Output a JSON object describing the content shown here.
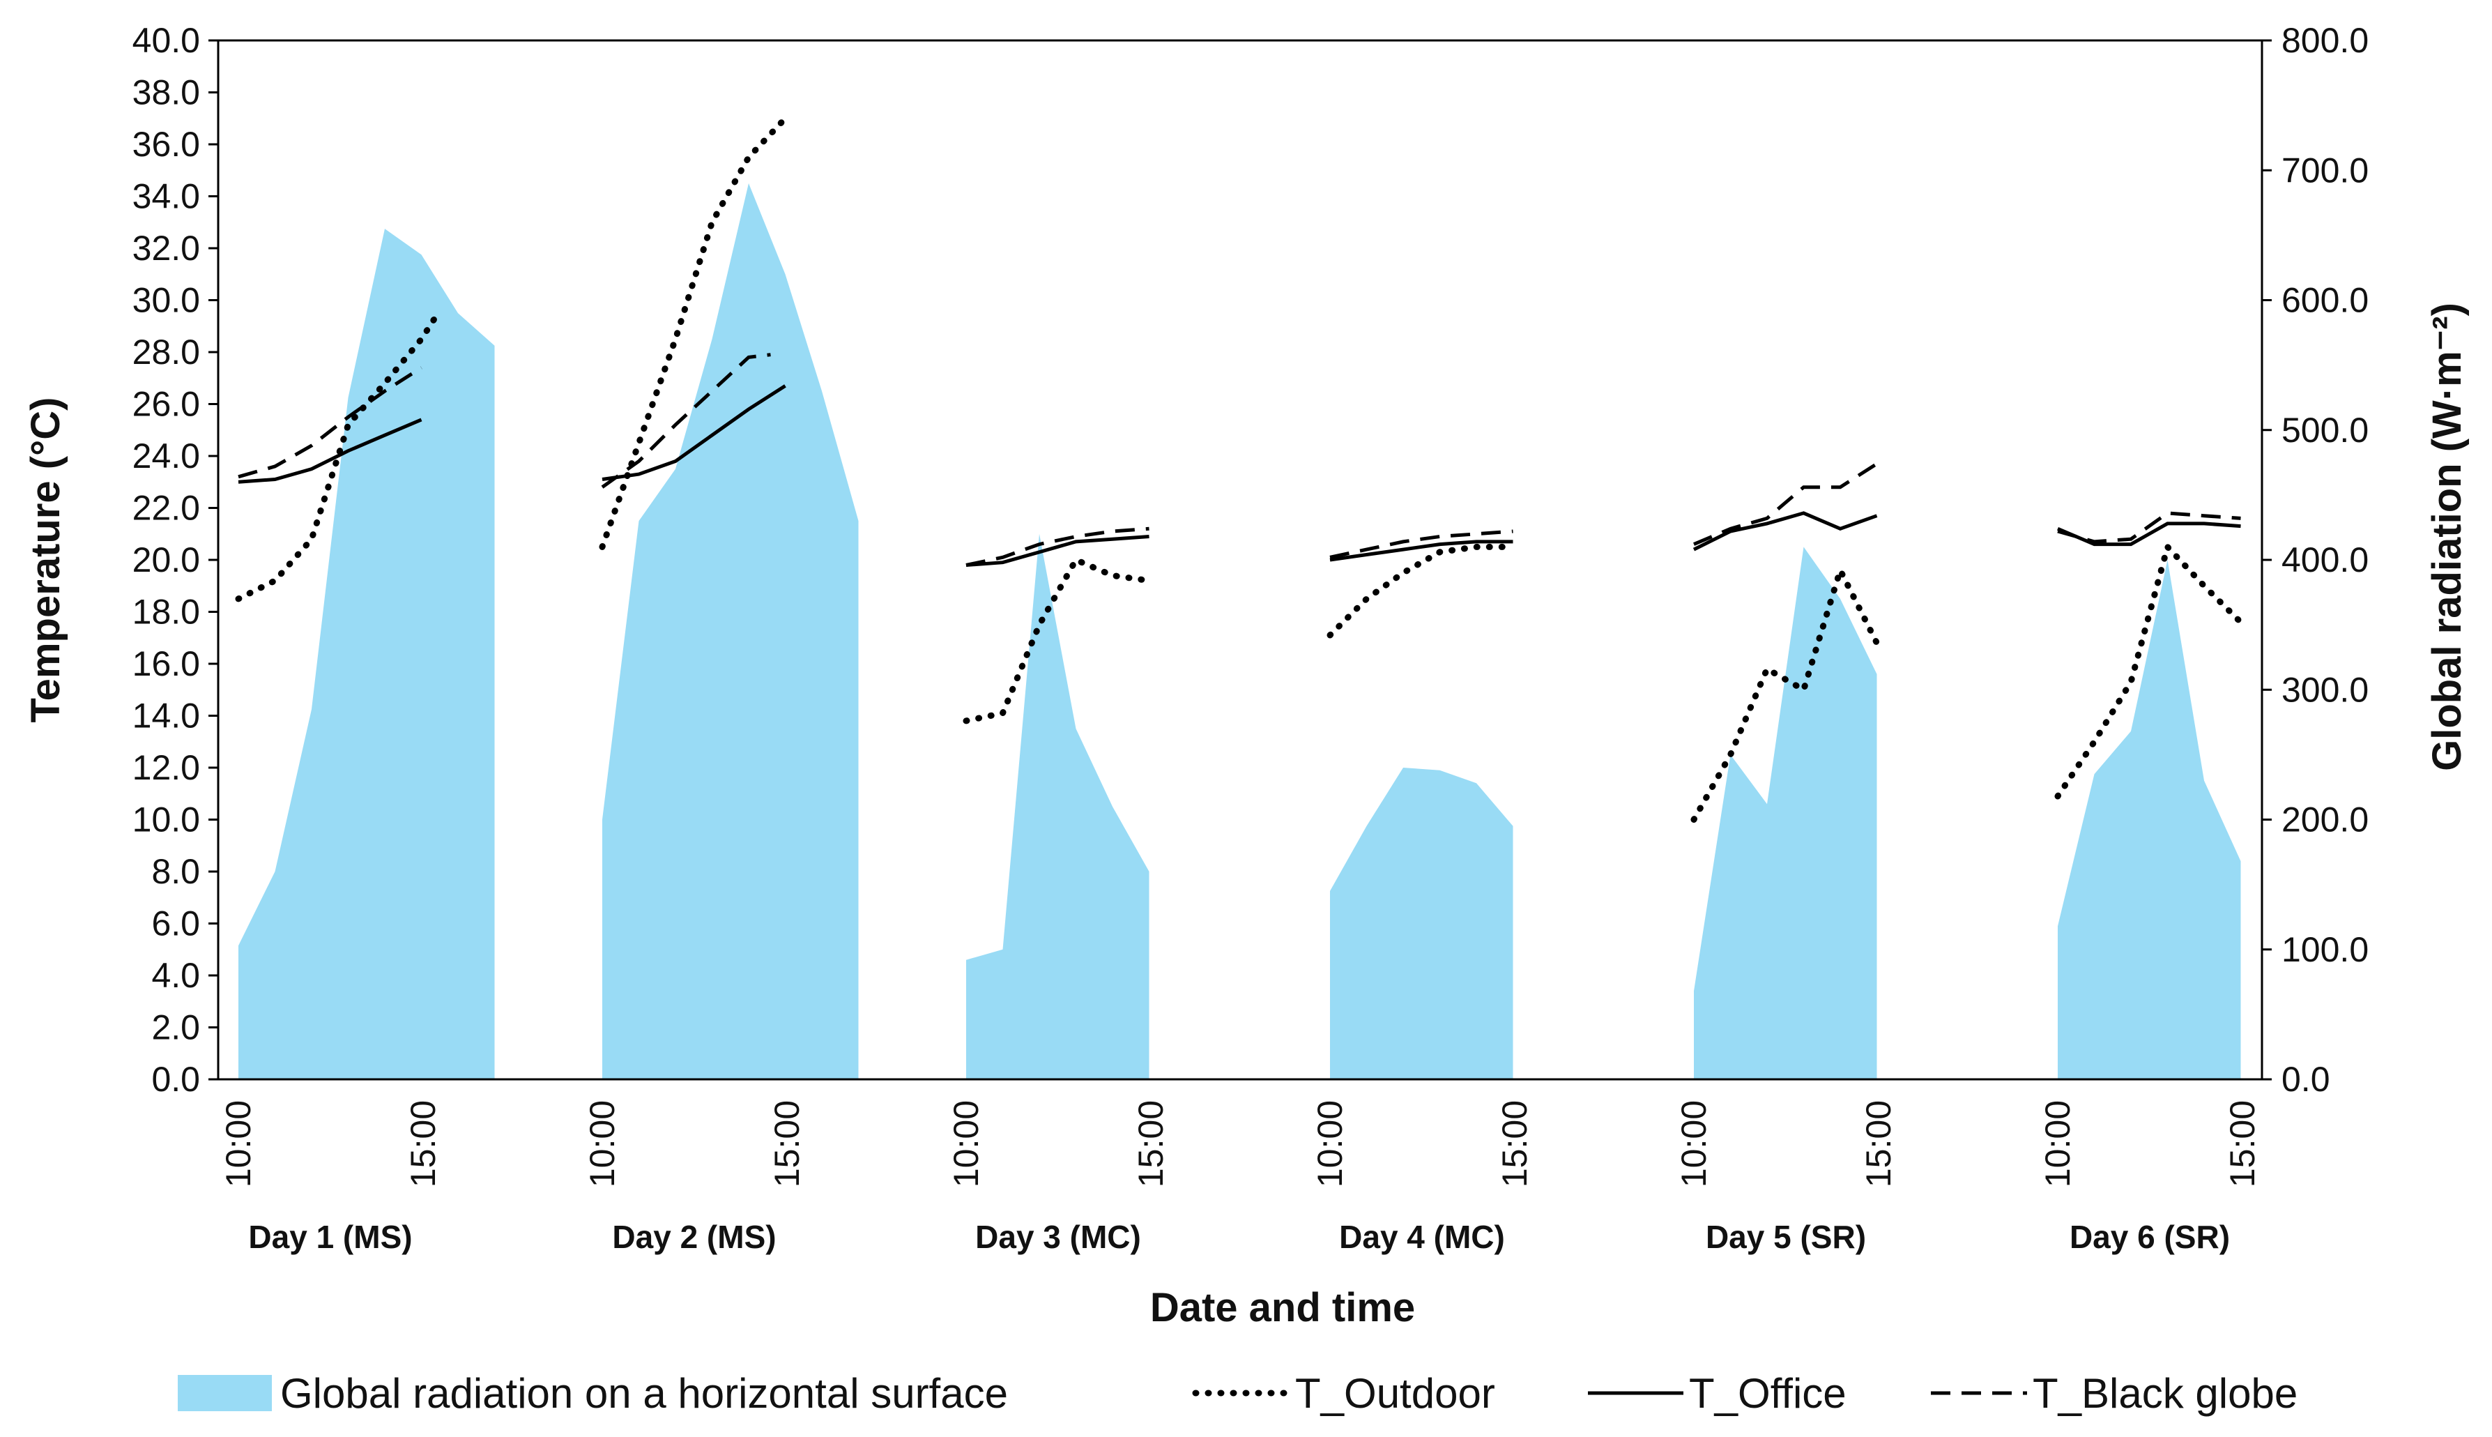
{
  "chart_data": {
    "type": "line+area",
    "xlabel": "Date and time",
    "ylabel_left": "Temperature (°C)",
    "ylabel_right": "Global radiation (W·m⁻²)",
    "ylim_left": [
      0,
      40
    ],
    "ylim_right": [
      0,
      800
    ],
    "left_ticks": [
      "0.0",
      "2.0",
      "4.0",
      "6.0",
      "8.0",
      "10.0",
      "12.0",
      "14.0",
      "16.0",
      "18.0",
      "20.0",
      "22.0",
      "24.0",
      "26.0",
      "28.0",
      "30.0",
      "32.0",
      "34.0",
      "36.0",
      "38.0",
      "40.0"
    ],
    "right_ticks": [
      "0.0",
      "100.0",
      "200.0",
      "300.0",
      "400.0",
      "500.0",
      "600.0",
      "700.0",
      "800.0"
    ],
    "grid": false,
    "legend_position": "bottom",
    "days": [
      {
        "label": "Day 1 (MS)",
        "time_start": "10:00",
        "time_end": "15:00",
        "radiation": [
          [
            0,
            103
          ],
          [
            0.5,
            160
          ],
          [
            1,
            285
          ],
          [
            1.5,
            525
          ],
          [
            2,
            655
          ],
          [
            2.5,
            635
          ],
          [
            3,
            590
          ],
          [
            3.5,
            565
          ]
        ],
        "t_outdoor": [
          [
            0,
            18.5
          ],
          [
            0.5,
            19.2
          ],
          [
            1,
            20.8
          ],
          [
            1.5,
            25.2
          ],
          [
            2,
            26.8
          ],
          [
            2.5,
            28.5
          ],
          [
            2.75,
            29.6
          ]
        ],
        "t_office": [
          [
            0,
            23.0
          ],
          [
            0.5,
            23.1
          ],
          [
            1,
            23.5
          ],
          [
            1.5,
            24.2
          ],
          [
            2,
            24.8
          ],
          [
            2.5,
            25.4
          ]
        ],
        "t_black_globe": [
          [
            0,
            23.2
          ],
          [
            0.5,
            23.6
          ],
          [
            1,
            24.4
          ],
          [
            1.5,
            25.5
          ],
          [
            2,
            26.5
          ],
          [
            2.5,
            27.4
          ]
        ]
      },
      {
        "label": "Day 2 (MS)",
        "time_start": "10:00",
        "time_end": "15:00",
        "radiation": [
          [
            0,
            200
          ],
          [
            0.5,
            430
          ],
          [
            1,
            470
          ],
          [
            1.5,
            570
          ],
          [
            2,
            690
          ],
          [
            2.5,
            620
          ],
          [
            3,
            530
          ],
          [
            3.5,
            430
          ]
        ],
        "t_outdoor": [
          [
            0,
            20.5
          ],
          [
            0.5,
            24.5
          ],
          [
            1,
            28.5
          ],
          [
            1.5,
            33.0
          ],
          [
            2,
            35.5
          ],
          [
            2.5,
            37.0
          ]
        ],
        "t_office": [
          [
            0,
            23.1
          ],
          [
            0.5,
            23.3
          ],
          [
            1,
            23.8
          ],
          [
            1.5,
            24.8
          ],
          [
            2,
            25.8
          ],
          [
            2.5,
            26.7
          ]
        ],
        "t_black_globe": [
          [
            0,
            22.8
          ],
          [
            0.5,
            23.8
          ],
          [
            1,
            25.2
          ],
          [
            1.5,
            26.5
          ],
          [
            2,
            27.8
          ],
          [
            2.3,
            27.9
          ]
        ]
      },
      {
        "label": "Day 3 (MC)",
        "time_start": "10:00",
        "time_end": "15:00",
        "radiation": [
          [
            0,
            92
          ],
          [
            0.5,
            100
          ],
          [
            1,
            420
          ],
          [
            1.5,
            270
          ],
          [
            2,
            210
          ],
          [
            2.5,
            160
          ]
        ],
        "t_outdoor": [
          [
            0,
            13.8
          ],
          [
            0.5,
            14.1
          ],
          [
            1,
            17.5
          ],
          [
            1.5,
            20.0
          ],
          [
            2,
            19.4
          ],
          [
            2.5,
            19.2
          ]
        ],
        "t_office": [
          [
            0,
            19.8
          ],
          [
            0.5,
            19.9
          ],
          [
            1,
            20.3
          ],
          [
            1.5,
            20.7
          ],
          [
            2,
            20.8
          ],
          [
            2.5,
            20.9
          ]
        ],
        "t_black_globe": [
          [
            0,
            19.8
          ],
          [
            0.5,
            20.1
          ],
          [
            1,
            20.6
          ],
          [
            1.5,
            20.9
          ],
          [
            2,
            21.1
          ],
          [
            2.5,
            21.2
          ]
        ]
      },
      {
        "label": "Day 4 (MC)",
        "time_start": "10:00",
        "time_end": "15:00",
        "radiation": [
          [
            0,
            145
          ],
          [
            0.5,
            195
          ],
          [
            1,
            240
          ],
          [
            1.5,
            238
          ],
          [
            2,
            228
          ],
          [
            2.5,
            195
          ]
        ],
        "t_outdoor": [
          [
            0,
            17.1
          ],
          [
            0.5,
            18.5
          ],
          [
            1,
            19.5
          ],
          [
            1.5,
            20.3
          ],
          [
            2,
            20.5
          ],
          [
            2.5,
            20.5
          ]
        ],
        "t_office": [
          [
            0,
            20.0
          ],
          [
            0.5,
            20.2
          ],
          [
            1,
            20.4
          ],
          [
            1.5,
            20.6
          ],
          [
            2,
            20.7
          ],
          [
            2.5,
            20.7
          ]
        ],
        "t_black_globe": [
          [
            0,
            20.1
          ],
          [
            0.5,
            20.4
          ],
          [
            1,
            20.7
          ],
          [
            1.5,
            20.9
          ],
          [
            2,
            21.0
          ],
          [
            2.5,
            21.1
          ]
        ]
      },
      {
        "label": "Day 5 (SR)",
        "time_start": "10:00",
        "time_end": "15:00",
        "radiation": [
          [
            0,
            68
          ],
          [
            0.5,
            250
          ],
          [
            1,
            212
          ],
          [
            1.5,
            410
          ],
          [
            2,
            370
          ],
          [
            2.5,
            312
          ]
        ],
        "t_outdoor": [
          [
            0,
            10.0
          ],
          [
            0.5,
            12.5
          ],
          [
            1,
            15.8
          ],
          [
            1.5,
            15.0
          ],
          [
            2,
            19.6
          ],
          [
            2.5,
            16.8
          ]
        ],
        "t_office": [
          [
            0,
            20.4
          ],
          [
            0.5,
            21.1
          ],
          [
            1,
            21.4
          ],
          [
            1.5,
            21.8
          ],
          [
            2,
            21.2
          ],
          [
            2.5,
            21.7
          ]
        ],
        "t_black_globe": [
          [
            0,
            20.6
          ],
          [
            0.5,
            21.2
          ],
          [
            1,
            21.6
          ],
          [
            1.5,
            22.8
          ],
          [
            2,
            22.8
          ],
          [
            2.5,
            23.7
          ]
        ]
      },
      {
        "label": "Day 6 (SR)",
        "time_start": "10:00",
        "time_end": "15:00",
        "radiation": [
          [
            0,
            118
          ],
          [
            0.5,
            235
          ],
          [
            1,
            268
          ],
          [
            1.5,
            400
          ],
          [
            2,
            230
          ],
          [
            2.5,
            168
          ]
        ],
        "t_outdoor": [
          [
            0,
            10.9
          ],
          [
            0.5,
            13.0
          ],
          [
            1,
            15.3
          ],
          [
            1.5,
            20.5
          ],
          [
            2,
            19.0
          ],
          [
            2.5,
            17.6
          ]
        ],
        "t_office": [
          [
            0,
            21.2
          ],
          [
            0.5,
            20.6
          ],
          [
            1,
            20.6
          ],
          [
            1.5,
            21.4
          ],
          [
            2,
            21.4
          ],
          [
            2.5,
            21.3
          ]
        ],
        "t_black_globe": [
          [
            0,
            21.1
          ],
          [
            0.5,
            20.7
          ],
          [
            1,
            20.8
          ],
          [
            1.5,
            21.8
          ],
          [
            2,
            21.7
          ],
          [
            2.5,
            21.6
          ]
        ]
      }
    ],
    "series": [
      {
        "key": "radiation",
        "name": "Global radiation on a horizontal surface",
        "axis": "right",
        "style": "area",
        "color": "#99dbf5"
      },
      {
        "key": "t_outdoor",
        "name": "T_Outdoor",
        "axis": "left",
        "style": "dotted",
        "color": "#000000"
      },
      {
        "key": "t_office",
        "name": "T_Office",
        "axis": "left",
        "style": "solid",
        "color": "#000000"
      },
      {
        "key": "t_black_globe",
        "name": "T_Black globe",
        "axis": "left",
        "style": "dashed",
        "color": "#000000"
      }
    ]
  }
}
